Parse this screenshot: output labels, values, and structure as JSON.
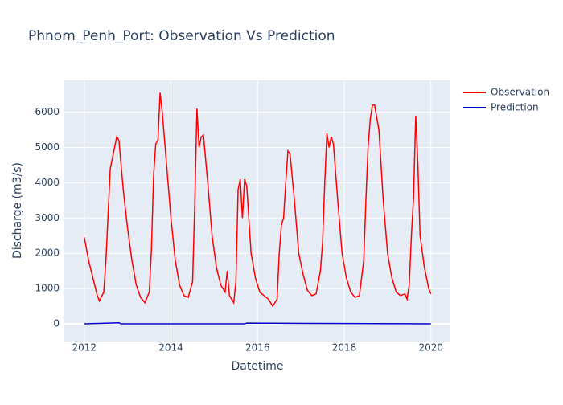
{
  "chart_data": {
    "type": "line",
    "title": "Phnom_Penh_Port: Observation Vs Prediction",
    "x_label": "Datetime",
    "y_label": "Discharge (m3/s)",
    "xlim": [
      2011.54,
      2020.45
    ],
    "ylim": [
      -500,
      6900
    ],
    "xticks": [
      2012,
      2014,
      2016,
      2018,
      2020
    ],
    "yticks": [
      0,
      1000,
      2000,
      3000,
      4000,
      5000,
      6000
    ],
    "grid": true,
    "legend": "right",
    "series": [
      {
        "name": "Observation",
        "color": "#ff0000",
        "x": [
          2012.0,
          2012.1,
          2012.2,
          2012.3,
          2012.35,
          2012.45,
          2012.5,
          2012.55,
          2012.6,
          2012.7,
          2012.75,
          2012.8,
          2012.9,
          2013.0,
          2013.1,
          2013.2,
          2013.3,
          2013.4,
          2013.5,
          2013.55,
          2013.6,
          2013.65,
          2013.7,
          2013.75,
          2013.8,
          2013.9,
          2014.0,
          2014.1,
          2014.2,
          2014.3,
          2014.4,
          2014.5,
          2014.55,
          2014.6,
          2014.65,
          2014.7,
          2014.75,
          2014.85,
          2014.95,
          2015.05,
          2015.15,
          2015.25,
          2015.3,
          2015.35,
          2015.45,
          2015.5,
          2015.55,
          2015.6,
          2015.65,
          2015.7,
          2015.75,
          2015.85,
          2015.95,
          2016.05,
          2016.15,
          2016.25,
          2016.35,
          2016.45,
          2016.5,
          2016.55,
          2016.6,
          2016.65,
          2016.7,
          2016.75,
          2016.85,
          2016.95,
          2017.05,
          2017.15,
          2017.25,
          2017.35,
          2017.45,
          2017.5,
          2017.55,
          2017.6,
          2017.65,
          2017.7,
          2017.75,
          2017.85,
          2017.95,
          2018.05,
          2018.15,
          2018.25,
          2018.35,
          2018.45,
          2018.5,
          2018.55,
          2018.6,
          2018.65,
          2018.7,
          2018.8,
          2018.9,
          2019.0,
          2019.1,
          2019.2,
          2019.3,
          2019.4,
          2019.45,
          2019.5,
          2019.55,
          2019.6,
          2019.65,
          2019.7,
          2019.75,
          2019.85,
          2019.95,
          2020.0
        ],
        "values": [
          2450,
          1800,
          1300,
          800,
          650,
          900,
          1800,
          3100,
          4400,
          5000,
          5300,
          5200,
          3800,
          2700,
          1800,
          1100,
          750,
          600,
          900,
          2100,
          4200,
          5100,
          5200,
          6550,
          6000,
          4500,
          3000,
          1800,
          1100,
          800,
          750,
          1200,
          3400,
          6100,
          5000,
          5300,
          5350,
          4000,
          2500,
          1600,
          1100,
          900,
          1500,
          800,
          600,
          1200,
          3800,
          4100,
          3000,
          4100,
          3900,
          2000,
          1300,
          900,
          800,
          700,
          500,
          700,
          2000,
          2800,
          3000,
          4000,
          4900,
          4800,
          3500,
          2000,
          1400,
          950,
          800,
          850,
          1500,
          2300,
          4000,
          5400,
          5000,
          5300,
          5100,
          3500,
          2000,
          1300,
          900,
          750,
          800,
          1800,
          3500,
          5000,
          5800,
          6200,
          6200,
          5500,
          3500,
          2000,
          1300,
          900,
          800,
          850,
          700,
          1100,
          2500,
          3600,
          5900,
          4500,
          2500,
          1600,
          1000,
          850
        ]
      },
      {
        "name": "Prediction",
        "color": "#0000cc",
        "x": [
          2012.0,
          2012.8,
          2012.85,
          2015.7,
          2015.75,
          2020.0
        ],
        "values": [
          0,
          30,
          0,
          0,
          20,
          0
        ]
      }
    ]
  }
}
